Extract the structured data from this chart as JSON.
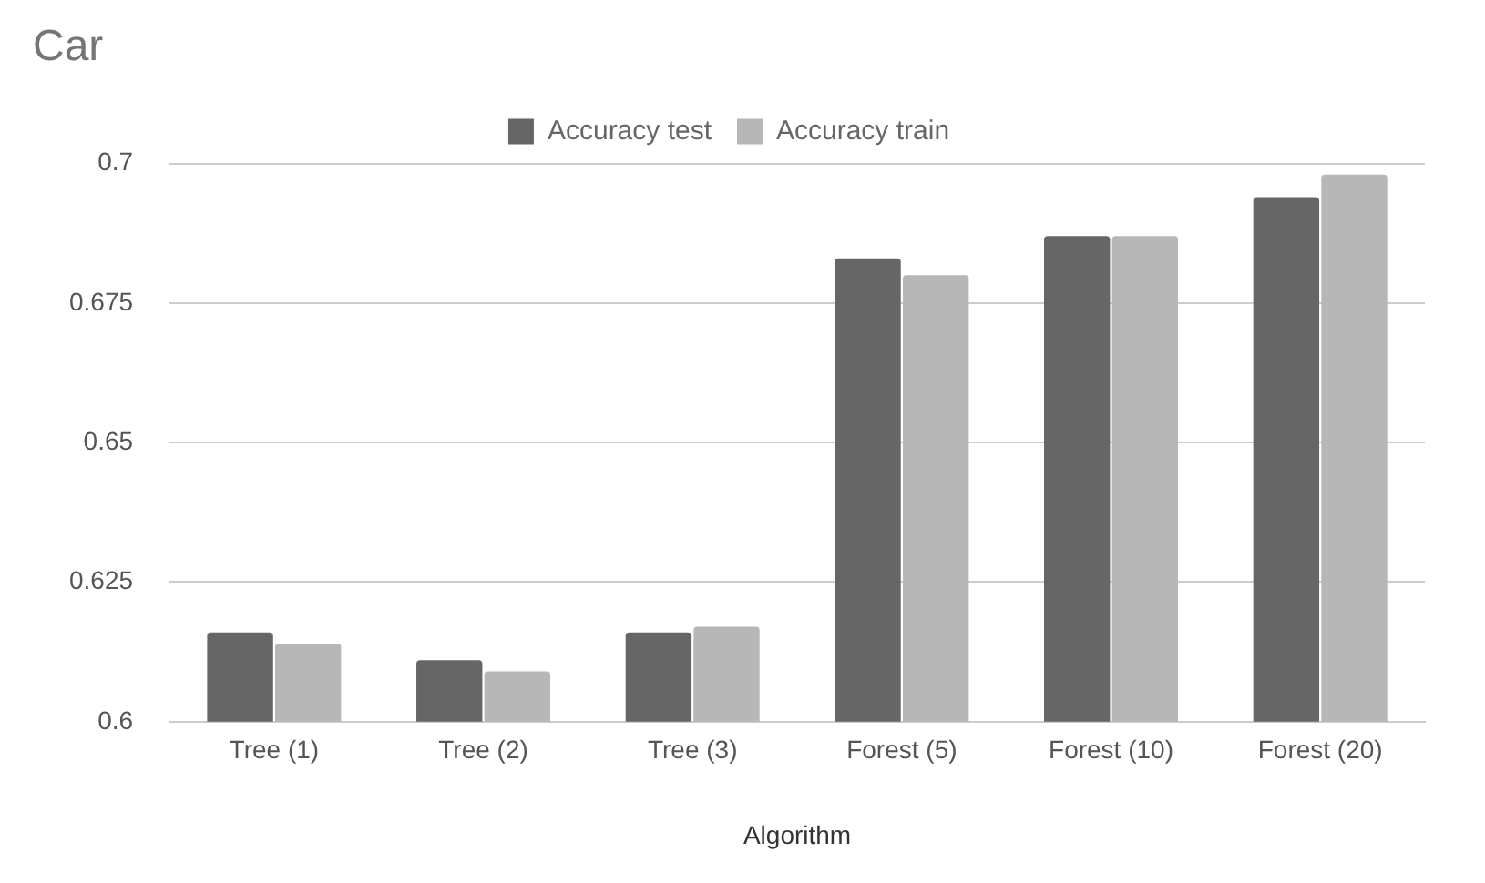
{
  "chart_data": {
    "type": "bar",
    "title": "Car",
    "xlabel": "Algorithm",
    "categories": [
      "Tree (1)",
      "Tree (2)",
      "Tree (3)",
      "Forest (5)",
      "Forest (10)",
      "Forest (20)"
    ],
    "series": [
      {
        "name": "Accuracy test",
        "color": "#666666",
        "values": [
          0.616,
          0.611,
          0.616,
          0.683,
          0.687,
          0.694
        ]
      },
      {
        "name": "Accuracy train",
        "color": "#b7b7b7",
        "values": [
          0.614,
          0.609,
          0.617,
          0.68,
          0.687,
          0.698
        ]
      }
    ],
    "ylim": [
      0.6,
      0.7
    ],
    "yticks": [
      0.6,
      0.625,
      0.65,
      0.675,
      0.7
    ],
    "grid": "y",
    "legend": "top"
  }
}
